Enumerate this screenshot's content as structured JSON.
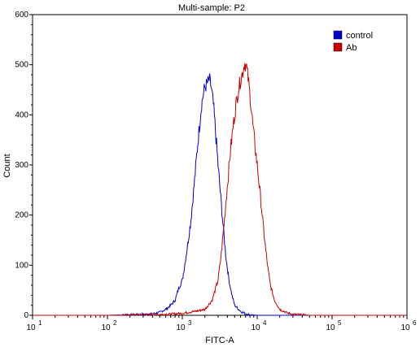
{
  "chart_data": {
    "type": "line",
    "title": "Multi-sample: P2",
    "xlabel": "FITC-A",
    "ylabel": "Count",
    "x_scale": "log",
    "xlim": [
      10,
      1000000
    ],
    "ylim": [
      0,
      600
    ],
    "x_major_ticks": [
      10,
      100,
      1000,
      10000,
      100000,
      1000000
    ],
    "x_tick_labels": [
      {
        "base": "10",
        "exp": "1"
      },
      {
        "base": "10",
        "exp": "2"
      },
      {
        "base": "10",
        "exp": "3"
      },
      {
        "base": "10",
        "exp": "4"
      },
      {
        "base": "10",
        "exp": "5"
      },
      {
        "base": "10",
        "exp": "6"
      }
    ],
    "y_ticks": [
      0,
      100,
      200,
      300,
      400,
      500,
      600
    ],
    "y_tick_labels": [
      "0",
      "100",
      "200",
      "300",
      "400",
      "500",
      "600"
    ],
    "grid": false,
    "legend": {
      "position": "top-right"
    },
    "series": [
      {
        "name": "control",
        "color": "#0000c8",
        "points": [
          [
            10,
            0
          ],
          [
            100,
            0
          ],
          [
            200,
            1
          ],
          [
            300,
            2
          ],
          [
            400,
            3
          ],
          [
            500,
            6
          ],
          [
            600,
            12
          ],
          [
            700,
            20
          ],
          [
            800,
            30
          ],
          [
            900,
            55
          ],
          [
            1000,
            70
          ],
          [
            1100,
            110
          ],
          [
            1200,
            150
          ],
          [
            1300,
            190
          ],
          [
            1400,
            240
          ],
          [
            1500,
            290
          ],
          [
            1600,
            340
          ],
          [
            1700,
            380
          ],
          [
            1800,
            420
          ],
          [
            1900,
            440
          ],
          [
            2000,
            455
          ],
          [
            2100,
            460
          ],
          [
            2200,
            465
          ],
          [
            2300,
            470
          ],
          [
            2400,
            460
          ],
          [
            2500,
            440
          ],
          [
            2600,
            420
          ],
          [
            2700,
            390
          ],
          [
            2800,
            360
          ],
          [
            3000,
            300
          ],
          [
            3200,
            250
          ],
          [
            3500,
            180
          ],
          [
            3800,
            120
          ],
          [
            4200,
            70
          ],
          [
            4600,
            40
          ],
          [
            5000,
            20
          ],
          [
            6000,
            8
          ],
          [
            7000,
            3
          ],
          [
            8000,
            1
          ],
          [
            10000,
            0
          ],
          [
            1000000,
            0
          ]
        ]
      },
      {
        "name": "Ab",
        "color": "#c80000",
        "points": [
          [
            10,
            0
          ],
          [
            100,
            0
          ],
          [
            300,
            1
          ],
          [
            600,
            2
          ],
          [
            1000,
            4
          ],
          [
            1500,
            8
          ],
          [
            2000,
            12
          ],
          [
            2500,
            30
          ],
          [
            3000,
            70
          ],
          [
            3300,
            120
          ],
          [
            3600,
            180
          ],
          [
            4000,
            260
          ],
          [
            4400,
            330
          ],
          [
            4800,
            380
          ],
          [
            5200,
            420
          ],
          [
            5600,
            450
          ],
          [
            6000,
            470
          ],
          [
            6400,
            485
          ],
          [
            6800,
            505
          ],
          [
            7200,
            495
          ],
          [
            7600,
            470
          ],
          [
            8000,
            440
          ],
          [
            8500,
            400
          ],
          [
            9000,
            360
          ],
          [
            10000,
            300
          ],
          [
            11000,
            240
          ],
          [
            12000,
            180
          ],
          [
            13000,
            130
          ],
          [
            14000,
            90
          ],
          [
            15000,
            60
          ],
          [
            17000,
            30
          ],
          [
            20000,
            12
          ],
          [
            25000,
            5
          ],
          [
            30000,
            2
          ],
          [
            40000,
            1
          ],
          [
            50000,
            0
          ],
          [
            1000000,
            0
          ]
        ]
      }
    ]
  }
}
